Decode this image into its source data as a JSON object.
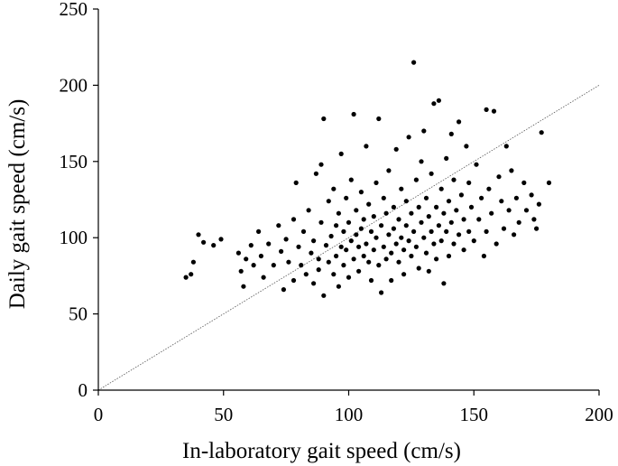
{
  "chart_data": {
    "type": "scatter",
    "title": "",
    "xlabel": "In-laboratory gait speed (cm/s)",
    "ylabel": "Daily gait speed (cm/s)",
    "xlim": [
      0,
      200
    ],
    "ylim": [
      0,
      250
    ],
    "xticks": [
      "0",
      "50",
      "100",
      "150",
      "200"
    ],
    "yticks": [
      "0",
      "50",
      "100",
      "150",
      "200",
      "250"
    ],
    "grid": false,
    "legend": "none",
    "reference_line": {
      "type": "identity",
      "style": "dotted",
      "from": [
        0,
        0
      ],
      "to": [
        200,
        200
      ]
    },
    "marker_color": "#000000",
    "axis_color": "#000000",
    "series": [
      {
        "values": [
          [
            35,
            74
          ],
          [
            37,
            76
          ],
          [
            38,
            84
          ],
          [
            40,
            102
          ],
          [
            42,
            97
          ],
          [
            46,
            95
          ],
          [
            49,
            99
          ],
          [
            56,
            90
          ],
          [
            57,
            78
          ],
          [
            58,
            68
          ],
          [
            59,
            86
          ],
          [
            61,
            95
          ],
          [
            62,
            82
          ],
          [
            64,
            104
          ],
          [
            65,
            88
          ],
          [
            66,
            74
          ],
          [
            68,
            96
          ],
          [
            70,
            82
          ],
          [
            72,
            108
          ],
          [
            73,
            91
          ],
          [
            74,
            66
          ],
          [
            75,
            99
          ],
          [
            76,
            84
          ],
          [
            78,
            112
          ],
          [
            78,
            72
          ],
          [
            79,
            136
          ],
          [
            80,
            94
          ],
          [
            81,
            82
          ],
          [
            82,
            104
          ],
          [
            83,
            76
          ],
          [
            84,
            118
          ],
          [
            85,
            90
          ],
          [
            86,
            98
          ],
          [
            86,
            70
          ],
          [
            87,
            142
          ],
          [
            88,
            86
          ],
          [
            88,
            79
          ],
          [
            89,
            148
          ],
          [
            89,
            110
          ],
          [
            90,
            62
          ],
          [
            90,
            178
          ],
          [
            91,
            95
          ],
          [
            92,
            124
          ],
          [
            92,
            84
          ],
          [
            93,
            101
          ],
          [
            94,
            132
          ],
          [
            94,
            76
          ],
          [
            95,
            108
          ],
          [
            95,
            88
          ],
          [
            96,
            116
          ],
          [
            96,
            68
          ],
          [
            97,
            94
          ],
          [
            97,
            155
          ],
          [
            98,
            104
          ],
          [
            98,
            82
          ],
          [
            99,
            126
          ],
          [
            99,
            92
          ],
          [
            100,
            110
          ],
          [
            100,
            74
          ],
          [
            101,
            138
          ],
          [
            101,
            98
          ],
          [
            102,
            86
          ],
          [
            102,
            181
          ],
          [
            103,
            118
          ],
          [
            103,
            102
          ],
          [
            104,
            94
          ],
          [
            104,
            78
          ],
          [
            105,
            130
          ],
          [
            105,
            106
          ],
          [
            106,
            88
          ],
          [
            106,
            112
          ],
          [
            107,
            160
          ],
          [
            107,
            96
          ],
          [
            108,
            122
          ],
          [
            108,
            84
          ],
          [
            109,
            104
          ],
          [
            109,
            72
          ],
          [
            110,
            114
          ],
          [
            110,
            92
          ],
          [
            111,
            136
          ],
          [
            111,
            100
          ],
          [
            112,
            82
          ],
          [
            112,
            178
          ],
          [
            113,
            108
          ],
          [
            113,
            64
          ],
          [
            114,
            126
          ],
          [
            114,
            94
          ],
          [
            115,
            116
          ],
          [
            115,
            86
          ],
          [
            116,
            144
          ],
          [
            116,
            102
          ],
          [
            117,
            90
          ],
          [
            117,
            72
          ],
          [
            118,
            120
          ],
          [
            118,
            106
          ],
          [
            119,
            96
          ],
          [
            119,
            158
          ],
          [
            120,
            112
          ],
          [
            120,
            84
          ],
          [
            121,
            132
          ],
          [
            121,
            100
          ],
          [
            122,
            92
          ],
          [
            122,
            76
          ],
          [
            123,
            124
          ],
          [
            123,
            108
          ],
          [
            124,
            98
          ],
          [
            124,
            166
          ],
          [
            125,
            116
          ],
          [
            125,
            88
          ],
          [
            126,
            104
          ],
          [
            126,
            215
          ],
          [
            127,
            138
          ],
          [
            127,
            94
          ],
          [
            128,
            120
          ],
          [
            128,
            80
          ],
          [
            129,
            110
          ],
          [
            129,
            150
          ],
          [
            130,
            100
          ],
          [
            130,
            170
          ],
          [
            131,
            126
          ],
          [
            131,
            90
          ],
          [
            132,
            114
          ],
          [
            132,
            78
          ],
          [
            133,
            142
          ],
          [
            133,
            104
          ],
          [
            134,
            96
          ],
          [
            134,
            188
          ],
          [
            135,
            120
          ],
          [
            135,
            86
          ],
          [
            136,
            108
          ],
          [
            136,
            190
          ],
          [
            137,
            132
          ],
          [
            137,
            98
          ],
          [
            138,
            116
          ],
          [
            138,
            70
          ],
          [
            139,
            152
          ],
          [
            139,
            104
          ],
          [
            140,
            124
          ],
          [
            140,
            88
          ],
          [
            141,
            110
          ],
          [
            141,
            168
          ],
          [
            142,
            96
          ],
          [
            142,
            138
          ],
          [
            143,
            118
          ],
          [
            144,
            102
          ],
          [
            144,
            176
          ],
          [
            145,
            128
          ],
          [
            146,
            92
          ],
          [
            146,
            112
          ],
          [
            147,
            160
          ],
          [
            148,
            104
          ],
          [
            148,
            136
          ],
          [
            149,
            120
          ],
          [
            150,
            98
          ],
          [
            151,
            148
          ],
          [
            152,
            112
          ],
          [
            153,
            126
          ],
          [
            154,
            88
          ],
          [
            155,
            184
          ],
          [
            155,
            104
          ],
          [
            156,
            132
          ],
          [
            157,
            116
          ],
          [
            158,
            183
          ],
          [
            159,
            96
          ],
          [
            160,
            140
          ],
          [
            161,
            124
          ],
          [
            162,
            106
          ],
          [
            163,
            160
          ],
          [
            164,
            118
          ],
          [
            165,
            144
          ],
          [
            166,
            102
          ],
          [
            167,
            126
          ],
          [
            168,
            110
          ],
          [
            170,
            136
          ],
          [
            171,
            118
          ],
          [
            173,
            128
          ],
          [
            174,
            112
          ],
          [
            175,
            106
          ],
          [
            176,
            122
          ],
          [
            177,
            169
          ],
          [
            180,
            136
          ]
        ]
      }
    ]
  }
}
